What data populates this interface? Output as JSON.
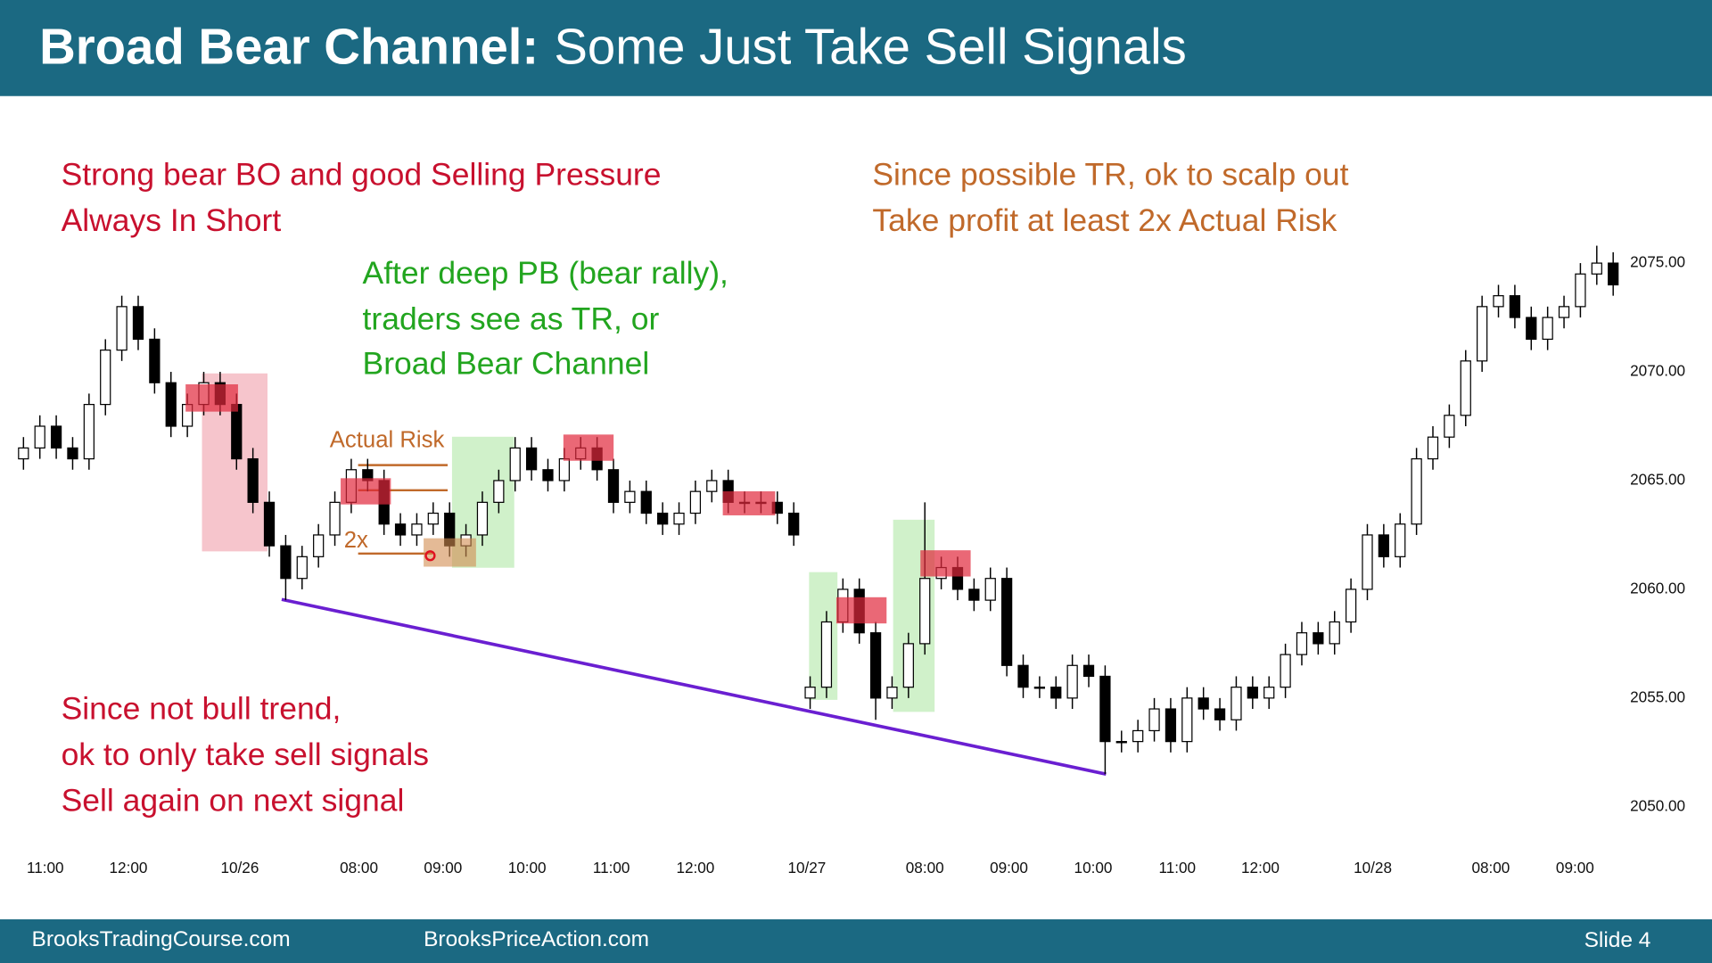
{
  "header": {
    "title_bold": "Broad Bear Channel:",
    "title_rest": "Some Just Take Sell Signals"
  },
  "annotations": {
    "red_top": [
      "Strong bear BO and good Selling Pressure",
      "Always In Short"
    ],
    "green": [
      "After deep PB (bear rally),",
      "traders see as TR, or",
      "Broad Bear Channel"
    ],
    "orange": [
      "Since possible TR, ok to scalp out",
      "Take profit at least 2x Actual Risk"
    ],
    "red_bottom": [
      "Since not bull trend,",
      "ok to only take sell signals",
      "Sell again on next signal"
    ],
    "actual_risk": "Actual Risk",
    "two_x": "2x"
  },
  "chart_data": {
    "type": "candlestick",
    "up_color": "#ffffff",
    "down_color": "#000000",
    "open": [
      2066,
      2066.5,
      2067.5,
      2066.5,
      2066,
      2068.5,
      2071,
      2073,
      2071.5,
      2069.5,
      2067.5,
      2068.5,
      2069.5,
      2068.5,
      2066,
      2064,
      2062,
      2060.5,
      2061.5,
      2062.5,
      2064,
      2065.5,
      2065,
      2063,
      2062.5,
      2063,
      2063.5,
      2062,
      2062.5,
      2064,
      2065,
      2066.5,
      2065.5,
      2065,
      2066,
      2066.5,
      2065.5,
      2064,
      2064.5,
      2063.5,
      2063,
      2063.5,
      2064.5,
      2065,
      2064,
      2064,
      2064,
      2063.5,
      2055,
      2055.5,
      2058.5,
      2060,
      2058,
      2055,
      2055.5,
      2057.5,
      2060.5,
      2061,
      2060,
      2059.5,
      2060.5,
      2056.5,
      2055.5,
      2055.5,
      2055,
      2056.5,
      2056,
      2053,
      2053,
      2053.5,
      2054.5,
      2053,
      2055,
      2054.5,
      2054,
      2055.5,
      2055,
      2055.5,
      2057,
      2058,
      2057.5,
      2058.5,
      2060,
      2062.5,
      2061.5,
      2063,
      2066,
      2067,
      2068,
      2070.5,
      2073,
      2073.5,
      2072.5,
      2071.5,
      2072.5,
      2073,
      2074.5,
      2075
    ],
    "high": [
      2067,
      2068,
      2068,
      2067,
      2069,
      2071.5,
      2073.5,
      2073.5,
      2072,
      2070,
      2069,
      2070,
      2070,
      2069,
      2066.5,
      2064.5,
      2062.5,
      2062,
      2063,
      2064.5,
      2066,
      2066,
      2065.5,
      2063.5,
      2063.5,
      2064,
      2064,
      2063,
      2064.5,
      2065.5,
      2067,
      2067,
      2066,
      2066.5,
      2067,
      2067,
      2066,
      2065,
      2065,
      2064,
      2064,
      2065,
      2065.5,
      2065.5,
      2064.5,
      2064.5,
      2064.5,
      2064,
      2056,
      2059,
      2060.5,
      2060.5,
      2058.5,
      2056,
      2058,
      2064,
      2061.5,
      2061.5,
      2060.5,
      2061,
      2061,
      2057,
      2056,
      2056,
      2057,
      2057,
      2056.5,
      2053.5,
      2054,
      2055,
      2055,
      2055.5,
      2055.5,
      2055,
      2056,
      2056,
      2056,
      2057.5,
      2058.5,
      2058.5,
      2059,
      2060.5,
      2063,
      2063,
      2063.5,
      2066.5,
      2067.5,
      2068.5,
      2071,
      2073.5,
      2074,
      2074,
      2073,
      2073,
      2073.5,
      2075,
      2075.8,
      2075.5
    ],
    "low": [
      2065.5,
      2066,
      2066,
      2065.5,
      2065.5,
      2068,
      2070.5,
      2071,
      2069,
      2067,
      2067,
      2068,
      2068,
      2065.5,
      2063.5,
      2061.5,
      2059.5,
      2060,
      2061,
      2062,
      2063.5,
      2064.5,
      2062.5,
      2062,
      2062,
      2062.5,
      2061.5,
      2061.5,
      2062,
      2063.5,
      2064.5,
      2065,
      2064.5,
      2064.5,
      2065.5,
      2065,
      2063.5,
      2063.5,
      2063,
      2062.5,
      2062.5,
      2063,
      2064,
      2063.5,
      2063.5,
      2063.5,
      2063,
      2062,
      2054.5,
      2055,
      2058,
      2057.5,
      2054,
      2054.5,
      2055,
      2057,
      2060,
      2059.5,
      2059,
      2059,
      2056,
      2055,
      2055,
      2054.5,
      2054.5,
      2055.5,
      2051.5,
      2052.5,
      2052.5,
      2053,
      2052.5,
      2052.5,
      2054,
      2053.5,
      2053.5,
      2054.5,
      2054.5,
      2055,
      2056.5,
      2057,
      2057,
      2058,
      2059.5,
      2061,
      2061,
      2062.5,
      2065.5,
      2066.5,
      2067.5,
      2070,
      2072.5,
      2072,
      2071,
      2071,
      2072,
      2072.5,
      2074,
      2073.5
    ],
    "close": [
      2066.5,
      2067.5,
      2066.5,
      2066,
      2068.5,
      2071,
      2073,
      2071.5,
      2069.5,
      2067.5,
      2068.5,
      2069.5,
      2068.5,
      2066,
      2064,
      2062,
      2060.5,
      2061.5,
      2062.5,
      2064,
      2065.5,
      2065,
      2063,
      2062.5,
      2063,
      2063.5,
      2062,
      2062.5,
      2064,
      2065,
      2066.5,
      2065.5,
      2065,
      2066,
      2066.5,
      2065.5,
      2064,
      2064.5,
      2063.5,
      2063,
      2063.5,
      2064.5,
      2065,
      2064,
      2064,
      2064,
      2063.5,
      2062.5,
      2055.5,
      2058.5,
      2060,
      2058,
      2055,
      2055.5,
      2057.5,
      2060.5,
      2061,
      2060,
      2059.5,
      2060.5,
      2056.5,
      2055.5,
      2055.5,
      2055,
      2056.5,
      2056,
      2053,
      2053,
      2053.5,
      2054.5,
      2053,
      2055,
      2054.5,
      2054,
      2055.5,
      2055,
      2055.5,
      2057,
      2058,
      2057.5,
      2058.5,
      2060,
      2062.5,
      2061.5,
      2063,
      2066,
      2067,
      2068,
      2070.5,
      2073,
      2073.5,
      2072.5,
      2071.5,
      2072.5,
      2073,
      2074.5,
      2075,
      2074
    ],
    "xlim": [
      -0.1,
      97.5
    ],
    "xticks": [
      {
        "value": 1.33,
        "label": "11:00"
      },
      {
        "value": 6.4,
        "label": "12:00"
      },
      {
        "value": 13.2,
        "label": "10/26"
      },
      {
        "value": 20.47,
        "label": "08:00"
      },
      {
        "value": 25.6,
        "label": "09:00"
      },
      {
        "value": 30.73,
        "label": "10:00"
      },
      {
        "value": 35.87,
        "label": "11:00"
      },
      {
        "value": 41,
        "label": "12:00"
      },
      {
        "value": 47.8,
        "label": "10/27"
      },
      {
        "value": 55,
        "label": "08:00"
      },
      {
        "value": 60.13,
        "label": "09:00"
      },
      {
        "value": 65.27,
        "label": "10:00"
      },
      {
        "value": 70.4,
        "label": "11:00"
      },
      {
        "value": 75.47,
        "label": "12:00"
      },
      {
        "value": 82.33,
        "label": "10/28"
      },
      {
        "value": 89.53,
        "label": "08:00"
      },
      {
        "value": 94.67,
        "label": "09:00"
      }
    ],
    "ylim": [
      2048.5,
      2076.5
    ],
    "yticks": [
      {
        "value": 2050,
        "label": "2050.00"
      },
      {
        "value": 2055,
        "label": "2055.00"
      },
      {
        "value": 2060,
        "label": "2060.00"
      },
      {
        "value": 2065,
        "label": "2065.00"
      },
      {
        "value": 2070,
        "label": "2070.00"
      },
      {
        "value": 2075,
        "label": "2075.00"
      }
    ]
  },
  "footer": {
    "left": "BrooksTradingCourse.com",
    "middle": "BrooksPriceAction.com",
    "right": "Slide 4"
  }
}
